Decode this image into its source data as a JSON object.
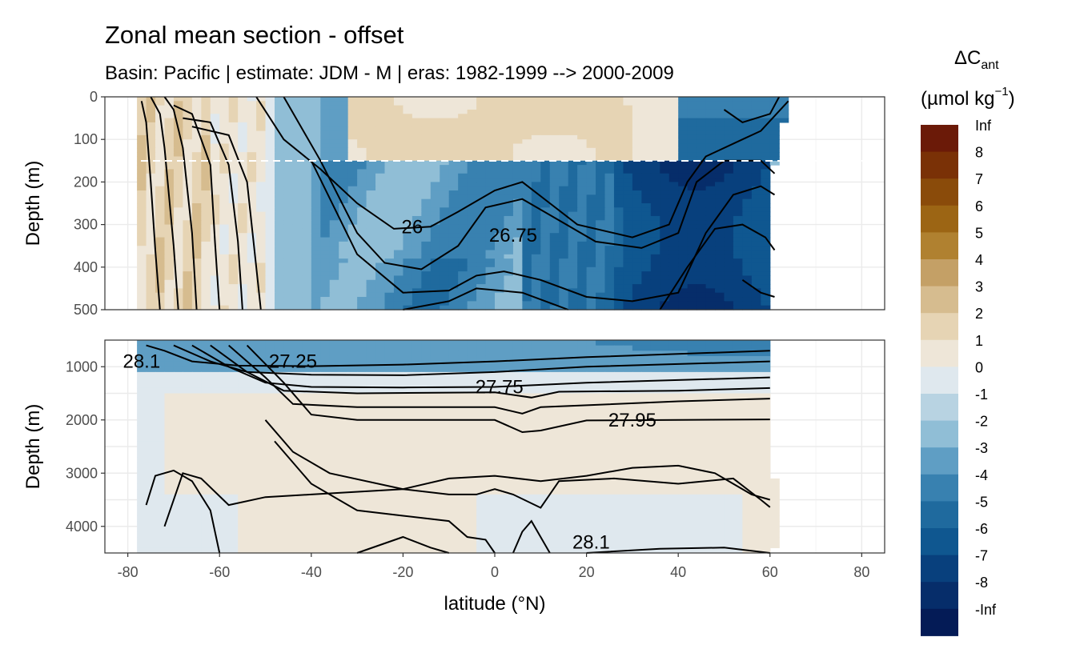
{
  "chart_data": {
    "type": "heatmap",
    "title": "Zonal mean section - offset",
    "subtitle": "Basin: Pacific | estimate: JDM - M | eras: 1982-1999 --> 2000-2009",
    "xlabel": "latitude (°N)",
    "ylabel": "Depth (m)",
    "x_ticks": [
      -80,
      -60,
      -40,
      -20,
      0,
      20,
      40,
      60,
      80
    ],
    "xlim": [
      -85,
      85
    ],
    "panels": [
      {
        "name": "upper",
        "ylim": [
          0,
          500
        ],
        "y_ticks": [
          0,
          100,
          200,
          300,
          400,
          500
        ],
        "reference_depth_dashed": 150
      },
      {
        "name": "lower",
        "ylim": [
          500,
          4500
        ],
        "y_ticks": [
          1000,
          2000,
          3000,
          4000
        ]
      }
    ],
    "legend": {
      "title_main": "ΔC",
      "title_sub": "ant",
      "unit_main": "(µmol kg",
      "unit_sup": "−1",
      "unit_close": ")",
      "labels": [
        "Inf",
        "8",
        "7",
        "6",
        "5",
        "4",
        "3",
        "2",
        "1",
        "0",
        "-1",
        "-2",
        "-3",
        "-4",
        "-5",
        "-6",
        "-7",
        "-8",
        "-Inf"
      ],
      "colors": [
        "#6b1a08",
        "#7a3106",
        "#8a4b0a",
        "#9c6514",
        "#b08130",
        "#c4a066",
        "#d6bc8f",
        "#e6d4b4",
        "#eee6d8",
        "#dfe8ee",
        "#b8d3e2",
        "#90bed6",
        "#5f9ec4",
        "#3881b0",
        "#1f6a9e",
        "#0f5790",
        "#08407d",
        "#062d6a",
        "#041b56"
      ]
    },
    "contour_labels": [
      {
        "text": "28.1",
        "lat": -77,
        "depth": 900
      },
      {
        "text": "27.25",
        "lat": -44,
        "depth": 900
      },
      {
        "text": "26",
        "lat": -18,
        "depth": 305
      },
      {
        "text": "26.75",
        "lat": 4,
        "depth": 325
      },
      {
        "text": "27.75",
        "lat": 1,
        "depth": 1380
      },
      {
        "text": "27.95",
        "lat": 30,
        "depth": 2000
      },
      {
        "text": "28.1",
        "lat": 21,
        "depth": 4300
      }
    ]
  }
}
